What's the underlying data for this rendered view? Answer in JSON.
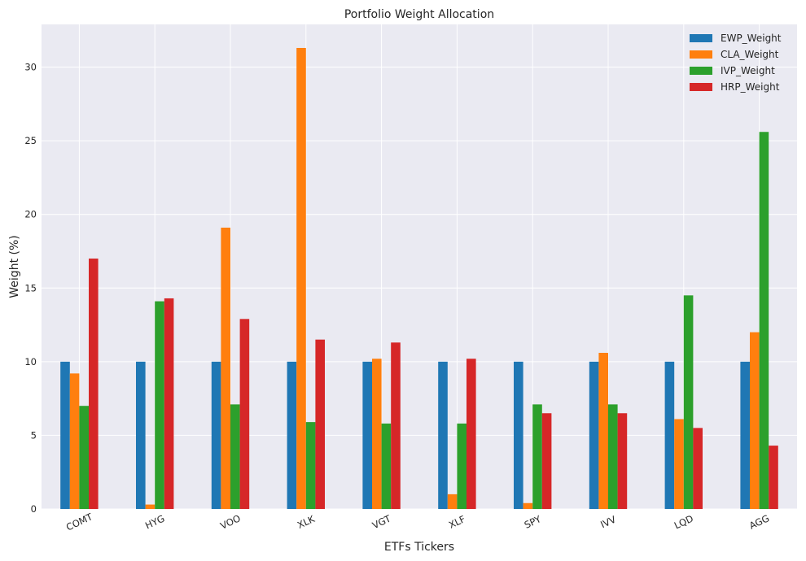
{
  "chart_data": {
    "type": "bar",
    "title": "Portfolio Weight Allocation",
    "xlabel": "ETFs Tickers",
    "ylabel": "Weight (%)",
    "ylim": [
      0,
      32.9
    ],
    "yticks": [
      0,
      5,
      10,
      15,
      20,
      25,
      30
    ],
    "ytick_labels": [
      "0",
      "5",
      "10",
      "15",
      "20",
      "25",
      "30"
    ],
    "grid": true,
    "legend_position": "top-right",
    "categories": [
      "COMT",
      "HYG",
      "VOO",
      "XLK",
      "VGT",
      "XLF",
      "SPY",
      "IVV",
      "LQD",
      "AGG"
    ],
    "series": [
      {
        "name": "EWP_Weight",
        "color": "#1f77b4",
        "values": [
          10,
          10,
          10,
          10,
          10,
          10,
          10,
          10,
          10,
          10
        ]
      },
      {
        "name": "CLA_Weight",
        "color": "#ff7f0e",
        "values": [
          9.2,
          0.3,
          19.1,
          31.3,
          10.2,
          1.0,
          0.4,
          10.6,
          6.1,
          12.0
        ]
      },
      {
        "name": "IVP_Weight",
        "color": "#2ca02c",
        "values": [
          7.0,
          14.1,
          7.1,
          5.9,
          5.8,
          5.8,
          7.1,
          7.1,
          14.5,
          25.6
        ]
      },
      {
        "name": "HRP_Weight",
        "color": "#d62728",
        "values": [
          17.0,
          14.3,
          12.9,
          11.5,
          11.3,
          10.2,
          6.5,
          6.5,
          5.5,
          4.3
        ]
      }
    ]
  }
}
